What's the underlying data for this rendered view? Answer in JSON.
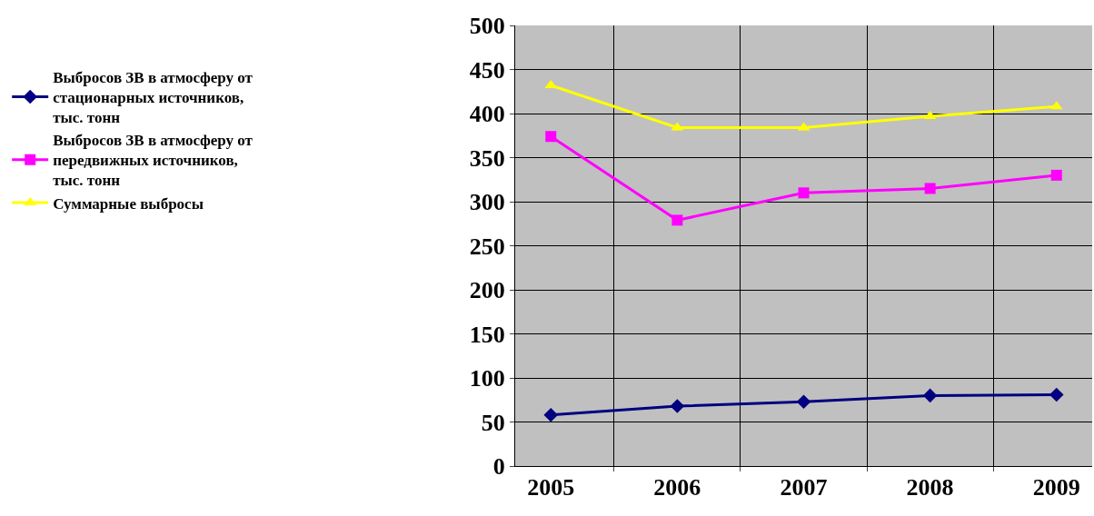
{
  "chart_data": {
    "type": "line",
    "categories": [
      "2005",
      "2006",
      "2007",
      "2008",
      "2009"
    ],
    "series": [
      {
        "name": "Выбросов ЗВ в атмосферу от стационарных источников, тыс. тонн",
        "color": "#000080",
        "marker": "diamond",
        "values": [
          58,
          68,
          73,
          80,
          81
        ]
      },
      {
        "name": "Выбросов ЗВ в атмосферу от передвижных источников, тыс. тонн",
        "color": "#ff00ff",
        "marker": "square",
        "values": [
          374,
          279,
          310,
          315,
          330
        ]
      },
      {
        "name": "Суммарные выбросы",
        "color": "#ffff00",
        "marker": "triangle",
        "values": [
          432,
          384,
          384,
          397,
          408
        ]
      }
    ],
    "ylim": [
      0,
      500
    ],
    "yticks": [
      0,
      50,
      100,
      150,
      200,
      250,
      300,
      350,
      400,
      450,
      500
    ],
    "grid": true,
    "legend": "left",
    "line_style": "solid"
  }
}
